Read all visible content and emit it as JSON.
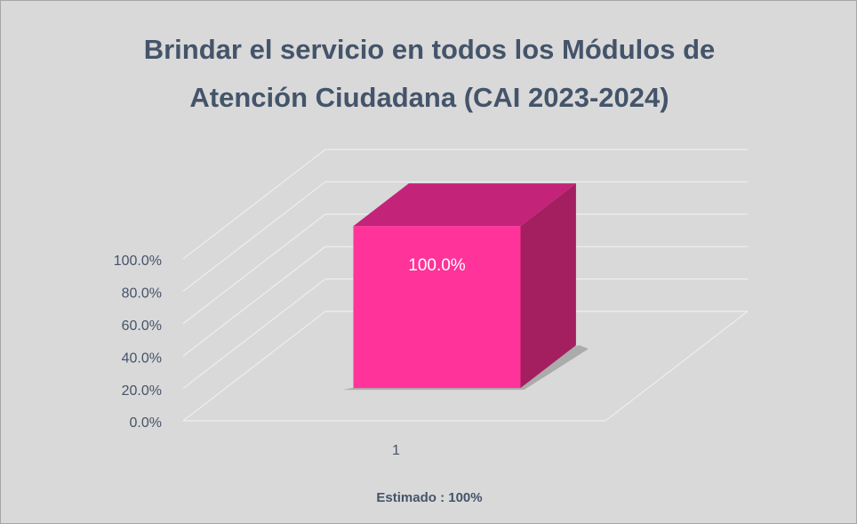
{
  "chart_data": {
    "type": "bar3d",
    "title": "Brindar el servicio en todos los Módulos de Atención Ciudadana (CAI 2023-2024)",
    "categories": [
      "1"
    ],
    "values": [
      100
    ],
    "value_labels": [
      "100.0%"
    ],
    "color": "#ff3399",
    "xlabel": "Estimado : 100%",
    "ylim": [
      0,
      100
    ],
    "yticks": [
      {
        "value": 0,
        "label": "0.0%"
      },
      {
        "value": 20,
        "label": "20.0%"
      },
      {
        "value": 40,
        "label": "40.0%"
      },
      {
        "value": 60,
        "label": "60.0%"
      },
      {
        "value": 80,
        "label": "80.0%"
      },
      {
        "value": 100,
        "label": "100.0%"
      }
    ],
    "grid": true
  }
}
